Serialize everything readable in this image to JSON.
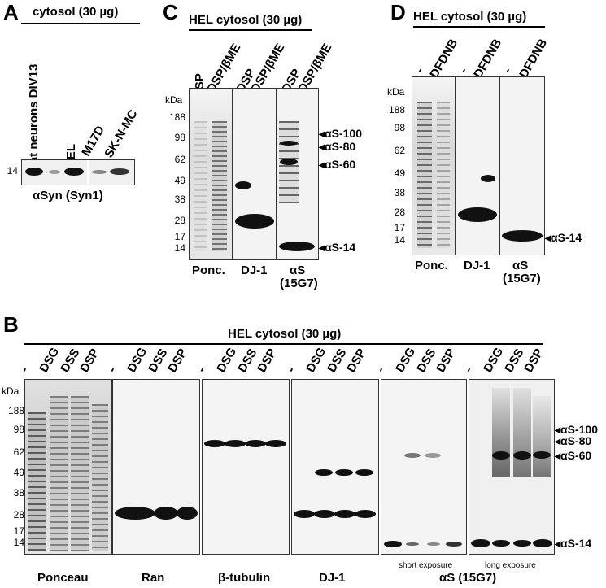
{
  "panelA": {
    "letter": "A",
    "header": "cytosol (30 µg)",
    "lanes": [
      "rat neurons DIV13",
      "HEL",
      "M17D",
      "SK-N-MC"
    ],
    "marker": "14",
    "caption": "αSyn (Syn1)"
  },
  "panelC": {
    "letter": "C",
    "header": "HEL cytosol (30 µg)",
    "lanes": [
      "DSP",
      "DSP/βME",
      "DSP",
      "DSP/βME",
      "DSP",
      "DSP/βME"
    ],
    "kda": "kDa",
    "markers": [
      "188",
      "98",
      "62",
      "49",
      "38",
      "28",
      "17",
      "14"
    ],
    "blots": [
      "Ponc.",
      "DJ-1",
      "αS",
      "(15G7)"
    ],
    "arrows": [
      "αS-100",
      "αS-80",
      "αS-60",
      "αS-14"
    ]
  },
  "panelD": {
    "letter": "D",
    "header": "HEL cytosol (30 µg)",
    "lanes": [
      "-",
      "DFDNB",
      "-",
      "DFDNB",
      "-",
      "DFDNB"
    ],
    "kda": "kDa",
    "markers": [
      "188",
      "98",
      "62",
      "49",
      "38",
      "28",
      "17",
      "14"
    ],
    "blots": [
      "Ponc.",
      "DJ-1",
      "αS",
      "(15G7)"
    ],
    "arrows": [
      "αS-14"
    ]
  },
  "panelB": {
    "letter": "B",
    "header": "HEL cytosol (30 µg)",
    "lanes": [
      "-",
      "DSG",
      "DSS",
      "DSP"
    ],
    "kda": "kDa",
    "markers": [
      "188",
      "98",
      "62",
      "49",
      "38",
      "28",
      "17",
      "14"
    ],
    "blots": [
      "Ponceau",
      "Ran",
      "β-tubulin",
      "DJ-1",
      "αS (15G7)"
    ],
    "notes": [
      "short exposure",
      "long exposure"
    ],
    "arrows": [
      "αS-100",
      "αS-80",
      "αS-60",
      "αS-14"
    ]
  },
  "colors": {
    "blot_bg": "#f2f2f2",
    "band": "#111111",
    "ponceau_bg": "#e9e9e9"
  }
}
